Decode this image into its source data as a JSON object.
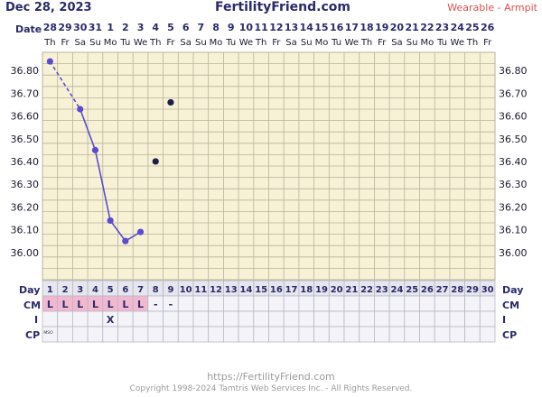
{
  "header": {
    "date": "Dec 28, 2023",
    "site": "FertilityFriend.com",
    "mode": "Wearable - Armpit"
  },
  "row_labels": {
    "date": "Date",
    "day": "Day",
    "cm": "CM",
    "intercourse": "I",
    "cp": "CP"
  },
  "colors": {
    "grid_bg": "#f7f2d6",
    "grid_line": "#b8b39a",
    "line": "#5b4bd1",
    "marker": "#5b4bd1",
    "off_marker": "#1e1e4a",
    "cm_highlight": "#f2b8d0",
    "label_color": "#2a2a6a"
  },
  "chart_data": {
    "type": "line",
    "dates": [
      "28",
      "29",
      "30",
      "31",
      "1",
      "2",
      "3",
      "4",
      "5",
      "6",
      "7",
      "8",
      "9",
      "10",
      "11",
      "12",
      "13",
      "14",
      "15",
      "16",
      "17",
      "18",
      "19",
      "20",
      "21",
      "22",
      "23",
      "24",
      "25",
      "26"
    ],
    "weekdays": [
      "Th",
      "Fr",
      "Sa",
      "Su",
      "Mo",
      "Tu",
      "We",
      "Th",
      "Fr",
      "Sa",
      "Su",
      "Mo",
      "Tu",
      "We",
      "Th",
      "Fr",
      "Sa",
      "Su",
      "Mo",
      "Tu",
      "We",
      "Th",
      "Fr",
      "Sa",
      "Su",
      "Mo",
      "Tu",
      "We",
      "Th",
      "Fr"
    ],
    "cycle_days": [
      "1",
      "2",
      "3",
      "4",
      "5",
      "6",
      "7",
      "8",
      "9",
      "10",
      "11",
      "12",
      "13",
      "14",
      "15",
      "16",
      "17",
      "18",
      "19",
      "20",
      "21",
      "22",
      "23",
      "24",
      "25",
      "26",
      "27",
      "28",
      "29",
      "30"
    ],
    "y_ticks": [
      "36.00",
      "36.10",
      "36.20",
      "36.30",
      "36.40",
      "36.50",
      "36.60",
      "36.70",
      "36.80"
    ],
    "ylim": [
      35.88,
      36.88
    ],
    "temps": [
      {
        "day": 1,
        "temp": 36.84
      },
      {
        "day": 3,
        "temp": 36.63
      },
      {
        "day": 4,
        "temp": 36.45
      },
      {
        "day": 5,
        "temp": 36.14
      },
      {
        "day": 6,
        "temp": 36.05
      },
      {
        "day": 7,
        "temp": 36.09
      }
    ],
    "dashed_segments": [
      [
        1,
        3
      ]
    ],
    "off_temps": [
      {
        "day": 8,
        "temp": 36.4
      },
      {
        "day": 9,
        "temp": 36.66
      }
    ],
    "cm": [
      "L",
      "L",
      "L",
      "L",
      "L",
      "L",
      "L",
      "-",
      "-",
      "",
      "",
      "",
      "",
      "",
      "",
      "",
      "",
      "",
      "",
      "",
      "",
      "",
      "",
      "",
      "",
      "",
      "",
      "",
      "",
      ""
    ],
    "intercourse": [
      "",
      "",
      "",
      "",
      "X",
      "",
      "",
      "",
      "",
      "",
      "",
      "",
      "",
      "",
      "",
      "",
      "",
      "",
      "",
      "",
      "",
      "",
      "",
      "",
      "",
      "",
      "",
      "",
      "",
      ""
    ],
    "cp": [
      "MSO",
      "",
      "",
      "",
      "",
      "",
      "",
      "",
      "",
      "",
      "",
      "",
      "",
      "",
      "",
      "",
      "",
      "",
      "",
      "",
      "",
      "",
      "",
      "",
      "",
      "",
      "",
      "",
      "",
      ""
    ]
  },
  "footer": {
    "url": "https://FertilityFriend.com",
    "copyright": "Copyright 1998-2024 Tamtris Web Services Inc. - All Rights Reserved."
  }
}
